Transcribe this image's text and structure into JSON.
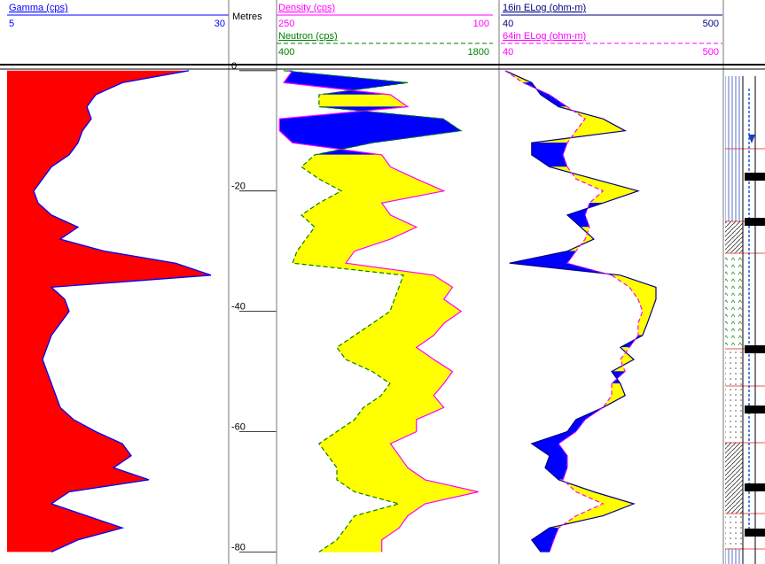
{
  "chart_data": [
    {
      "type": "area",
      "y": [
        0,
        -2,
        -4,
        -6,
        -8,
        -10,
        -12,
        -14,
        -16,
        -18,
        -20,
        -22,
        -24,
        -26,
        -28,
        -30,
        -32,
        -34,
        -36,
        -38,
        -40,
        -42,
        -44,
        -46,
        -48,
        -50,
        -52,
        -54,
        -56,
        -58,
        -60,
        -62,
        -64,
        -66,
        -68,
        -70,
        -72,
        -74,
        -76,
        -78,
        -80
      ],
      "ylim": [
        1,
        -82
      ],
      "series": [
        {
          "name": "Gamma (cps)",
          "color": "#0000ff",
          "fill": "#ff0000",
          "xlim": [
            5,
            30
          ],
          "values": [
            25.5,
            18,
            15,
            14,
            14.5,
            13.5,
            13,
            12,
            10,
            9,
            8,
            8.5,
            10,
            13,
            11,
            16,
            24,
            28,
            10,
            11.5,
            12,
            11,
            10,
            9.5,
            9,
            9.5,
            10,
            10.5,
            11,
            12.5,
            15,
            18,
            19,
            17,
            21,
            12,
            10,
            14,
            18,
            13,
            10
          ]
        }
      ]
    },
    {
      "type": "axis",
      "title": "Metres",
      "ylim": [
        1,
        -82
      ],
      "yticks": [
        0,
        -20,
        -40,
        -60,
        -80
      ]
    },
    {
      "type": "line",
      "y": [
        0,
        -2,
        -4,
        -6,
        -8,
        -10,
        -12,
        -14,
        -16,
        -18,
        -20,
        -22,
        -24,
        -26,
        -28,
        -30,
        -32,
        -34,
        -36,
        -38,
        -40,
        -42,
        -44,
        -46,
        -48,
        -50,
        -52,
        -54,
        -56,
        -58,
        -60,
        -62,
        -64,
        -66,
        -68,
        -70,
        -72,
        -74,
        -76,
        -78,
        -80
      ],
      "ylim": [
        1,
        -82
      ],
      "crossover": {
        "positive": "#ffff00",
        "negative": "#0000ff"
      },
      "series": [
        {
          "name": "Density (cps)",
          "color": "#ff00ff",
          "xlim": [
            250,
            100
          ],
          "dash": false,
          "values": [
            239,
            245,
            171,
            159,
            248,
            248,
            239,
            177,
            171,
            153,
            134,
            177,
            171,
            153,
            171,
            196,
            202,
            141,
            128,
            134,
            122,
            134,
            141,
            153,
            141,
            128,
            134,
            141,
            134,
            153,
            153,
            171,
            165,
            159,
            147,
            110,
            147,
            159,
            165,
            177,
            177
          ]
        },
        {
          "name": "Neutron (cps)",
          "color": "#008000",
          "xlim": [
            400,
            1800
          ],
          "dash": true,
          "values": [
            446,
            1249,
            675,
            675,
            1479,
            1594,
            1020,
            647,
            561,
            675,
            819,
            675,
            561,
            647,
            589,
            532,
            503,
            1221,
            1192,
            1163,
            1134,
            1020,
            905,
            790,
            848,
            1020,
            1134,
            1077,
            962,
            905,
            790,
            675,
            733,
            790,
            790,
            905,
            1192,
            905,
            848,
            790,
            675
          ]
        }
      ]
    },
    {
      "type": "line",
      "y": [
        0,
        -2,
        -4,
        -6,
        -8,
        -10,
        -12,
        -14,
        -16,
        -18,
        -20,
        -22,
        -24,
        -26,
        -28,
        -30,
        -32,
        -34,
        -36,
        -38,
        -40,
        -42,
        -44,
        -46,
        -48,
        -50,
        -52,
        -54,
        -56,
        -58,
        -60,
        -62,
        -64,
        -66,
        -68,
        -70,
        -72,
        -74,
        -76,
        -78,
        -80
      ],
      "ylim": [
        1,
        -82
      ],
      "crossover": {
        "positive": "#ffff00",
        "negative": "#0000ff"
      },
      "series": [
        {
          "name": "16in ELog (ohm-m)",
          "color": "#000080",
          "xlim": [
            40,
            500
          ],
          "dash": false,
          "values": [
            49,
            104,
            123,
            160,
            252,
            298,
            104,
            104,
            141,
            233,
            325,
            252,
            178,
            206,
            233,
            178,
            58,
            288,
            362,
            362,
            353,
            344,
            334,
            288,
            316,
            270,
            288,
            298,
            252,
            196,
            178,
            104,
            141,
            132,
            160,
            233,
            316,
            252,
            141,
            104,
            123
          ]
        },
        {
          "name": "64in ELog (ohm-m)",
          "color": "#ff00ff",
          "xlim": [
            40,
            500
          ],
          "dash": true,
          "values": [
            49,
            86,
            141,
            178,
            215,
            196,
            178,
            169,
            178,
            196,
            252,
            224,
            215,
            224,
            215,
            196,
            178,
            270,
            307,
            325,
            334,
            325,
            325,
            307,
            288,
            298,
            270,
            270,
            252,
            215,
            196,
            160,
            178,
            178,
            169,
            196,
            252,
            196,
            160,
            150,
            141
          ]
        }
      ]
    }
  ]
}
